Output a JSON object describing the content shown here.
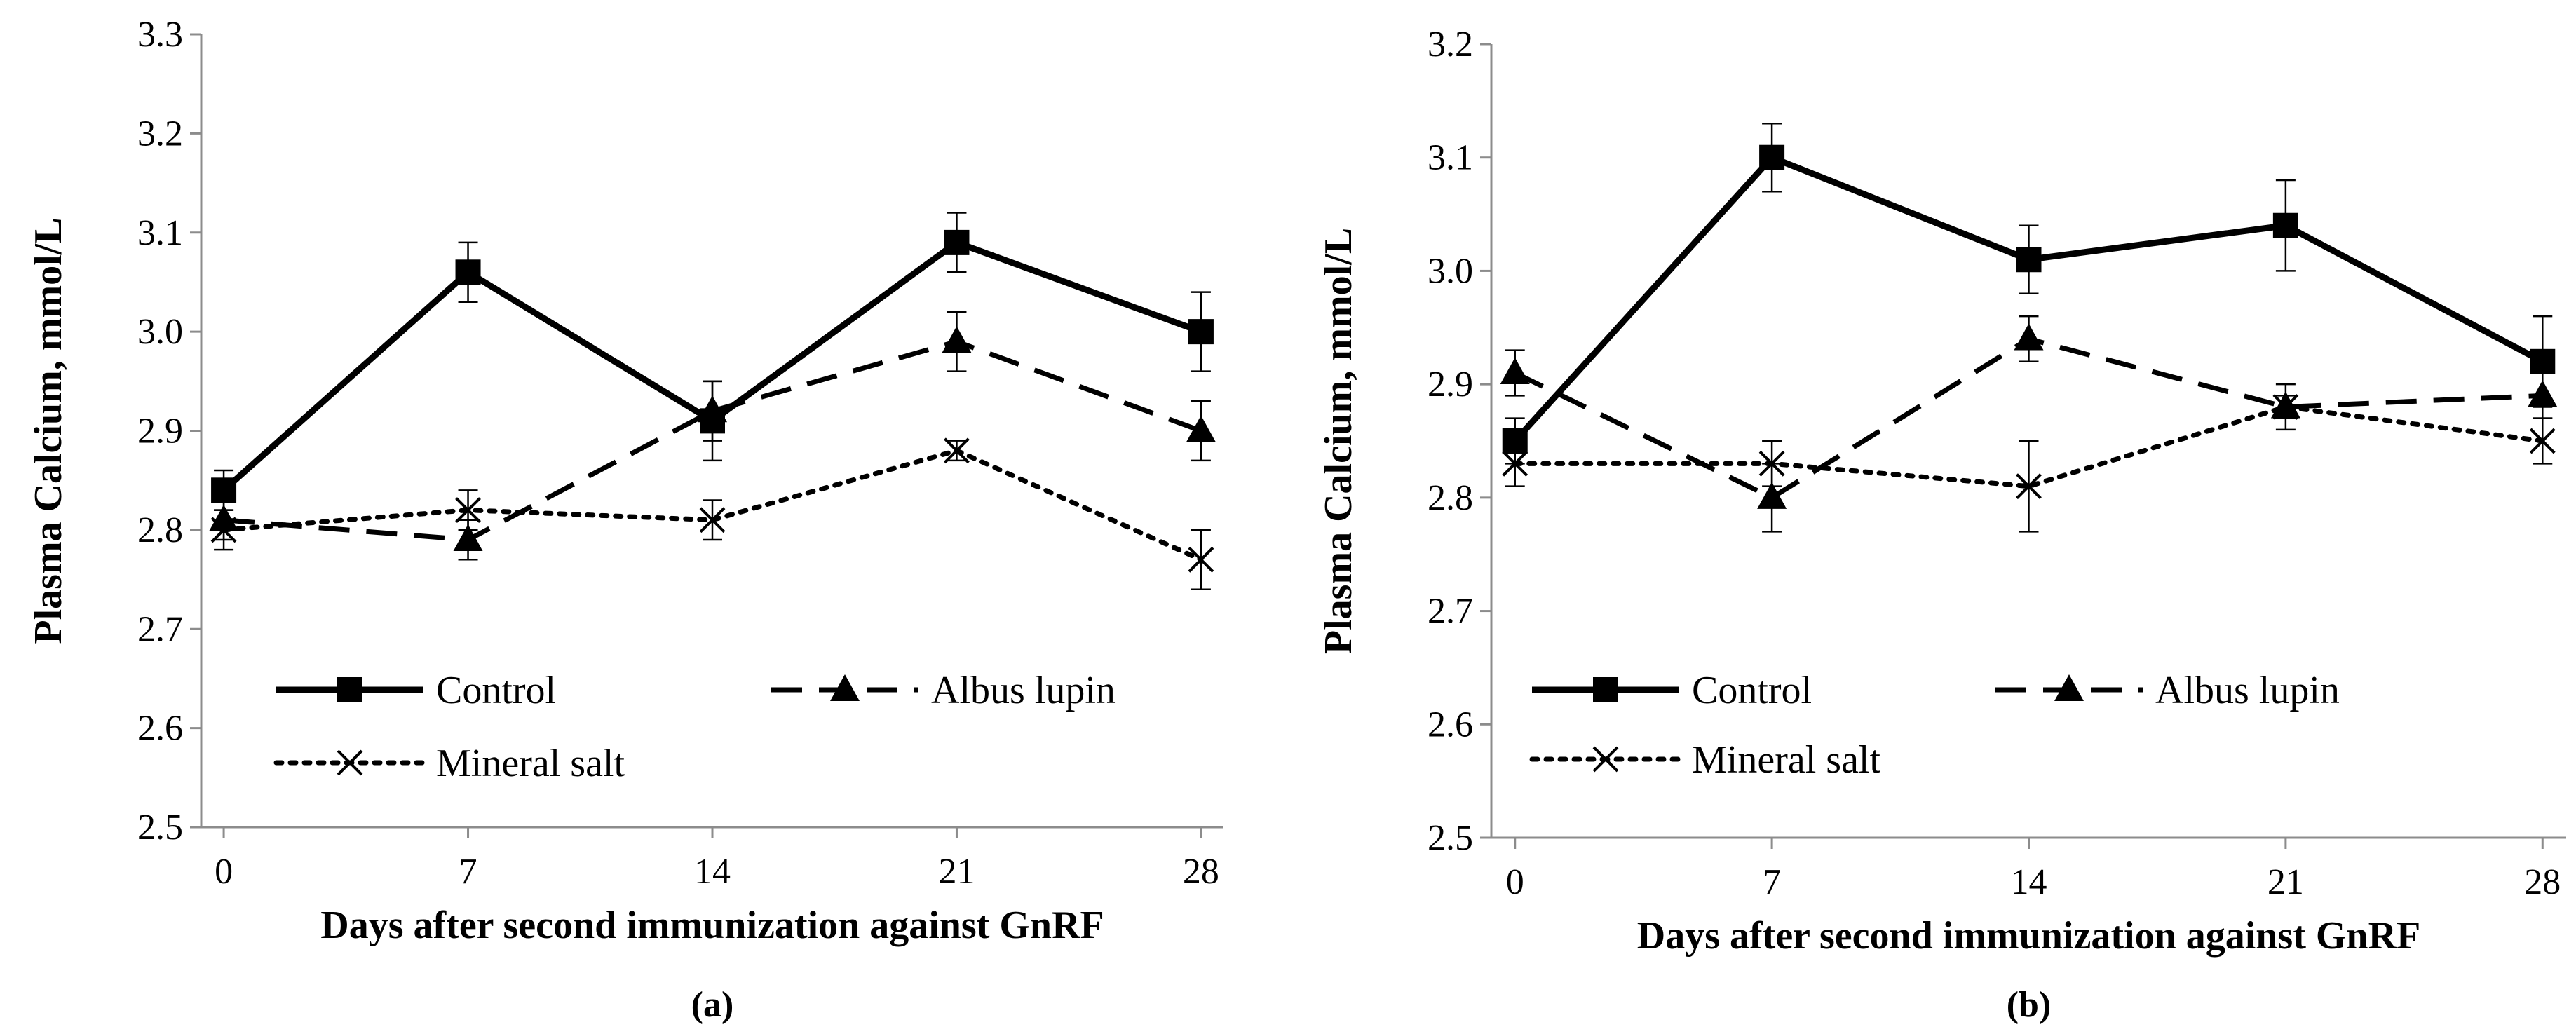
{
  "chart_data": [
    {
      "type": "line",
      "panel_label": "(a)",
      "xlabel": "Days after second immunization against GnRF",
      "ylabel": "Plasma Calcium, mmol/L",
      "x": [
        0,
        7,
        14,
        21,
        28
      ],
      "x_tick_labels": [
        "0",
        "7",
        "14",
        "21",
        "28"
      ],
      "ylim": [
        2.5,
        3.3
      ],
      "y_ticks": [
        2.5,
        2.6,
        2.7,
        2.8,
        2.9,
        3.0,
        3.1,
        3.2,
        3.3
      ],
      "y_tick_labels": [
        "2.5",
        "2.6",
        "2.7",
        "2.8",
        "2.9",
        "3.0",
        "3.1",
        "3.2",
        "3.3"
      ],
      "grid": false,
      "legend_placement": "bottom",
      "series": [
        {
          "name": "Control",
          "style": "solid",
          "marker": "square",
          "values": [
            2.84,
            3.06,
            2.91,
            3.09,
            3.0
          ],
          "errors": [
            0.02,
            0.03,
            0.04,
            0.03,
            0.04
          ]
        },
        {
          "name": "Albus lupin",
          "style": "dashed",
          "marker": "triangle",
          "values": [
            2.81,
            2.79,
            2.92,
            2.99,
            2.9
          ],
          "errors": [
            0.02,
            0.02,
            0.03,
            0.03,
            0.03
          ]
        },
        {
          "name": "Mineral salt",
          "style": "dotted",
          "marker": "x",
          "values": [
            2.8,
            2.82,
            2.81,
            2.88,
            2.77
          ],
          "errors": [
            0.02,
            0.02,
            0.02,
            0.01,
            0.03
          ]
        }
      ]
    },
    {
      "type": "line",
      "panel_label": "(b)",
      "xlabel": "Days after second immunization against GnRF",
      "ylabel": "Plasma Calcium, mmol/L",
      "x": [
        0,
        7,
        14,
        21,
        28
      ],
      "x_tick_labels": [
        "0",
        "7",
        "14",
        "21",
        "28"
      ],
      "ylim": [
        2.5,
        3.2
      ],
      "y_ticks": [
        2.5,
        2.6,
        2.7,
        2.8,
        2.9,
        3.0,
        3.1,
        3.2
      ],
      "y_tick_labels": [
        "2.5",
        "2.6",
        "2.7",
        "2.8",
        "2.9",
        "3.0",
        "3.1",
        "3.2"
      ],
      "grid": false,
      "legend_placement": "bottom",
      "series": [
        {
          "name": "Control",
          "style": "solid",
          "marker": "square",
          "values": [
            2.85,
            3.1,
            3.01,
            3.04,
            2.92
          ],
          "errors": [
            0.02,
            0.03,
            0.03,
            0.04,
            0.04
          ]
        },
        {
          "name": "Albus lupin",
          "style": "dashed",
          "marker": "triangle",
          "values": [
            2.91,
            2.8,
            2.94,
            2.88,
            2.89
          ],
          "errors": [
            0.02,
            0.03,
            0.02,
            0.02,
            0.02
          ]
        },
        {
          "name": "Mineral salt",
          "style": "dotted",
          "marker": "x",
          "values": [
            2.83,
            2.83,
            2.81,
            2.88,
            2.85
          ],
          "errors": [
            0.02,
            0.02,
            0.04,
            0.01,
            0.02
          ]
        }
      ]
    }
  ]
}
